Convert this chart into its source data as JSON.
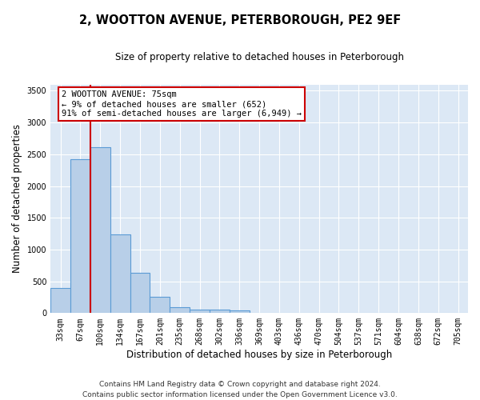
{
  "title": "2, WOOTTON AVENUE, PETERBOROUGH, PE2 9EF",
  "subtitle": "Size of property relative to detached houses in Peterborough",
  "xlabel": "Distribution of detached houses by size in Peterborough",
  "ylabel": "Number of detached properties",
  "categories": [
    "33sqm",
    "67sqm",
    "100sqm",
    "134sqm",
    "167sqm",
    "201sqm",
    "235sqm",
    "268sqm",
    "302sqm",
    "336sqm",
    "369sqm",
    "403sqm",
    "436sqm",
    "470sqm",
    "504sqm",
    "537sqm",
    "571sqm",
    "604sqm",
    "638sqm",
    "672sqm",
    "705sqm"
  ],
  "bar_heights": [
    390,
    2420,
    2610,
    1240,
    640,
    255,
    90,
    60,
    55,
    40,
    0,
    0,
    0,
    0,
    0,
    0,
    0,
    0,
    0,
    0,
    0
  ],
  "bar_color": "#b8cfe8",
  "bar_edge_color": "#5b9bd5",
  "fig_bg_color": "#ffffff",
  "ax_bg_color": "#dce8f5",
  "grid_color": "#ffffff",
  "annotation_text": "2 WOOTTON AVENUE: 75sqm\n← 9% of detached houses are smaller (652)\n91% of semi-detached houses are larger (6,949) →",
  "annotation_box_facecolor": "#ffffff",
  "annotation_box_edgecolor": "#cc0000",
  "vline_color": "#cc0000",
  "vline_x": 1.5,
  "ylim": [
    0,
    3600
  ],
  "yticks": [
    0,
    500,
    1000,
    1500,
    2000,
    2500,
    3000,
    3500
  ],
  "footer": "Contains HM Land Registry data © Crown copyright and database right 2024.\nContains public sector information licensed under the Open Government Licence v3.0.",
  "title_fontsize": 10.5,
  "subtitle_fontsize": 8.5,
  "ylabel_fontsize": 8.5,
  "xlabel_fontsize": 8.5,
  "tick_fontsize": 7,
  "annotation_fontsize": 7.5,
  "footer_fontsize": 6.5
}
